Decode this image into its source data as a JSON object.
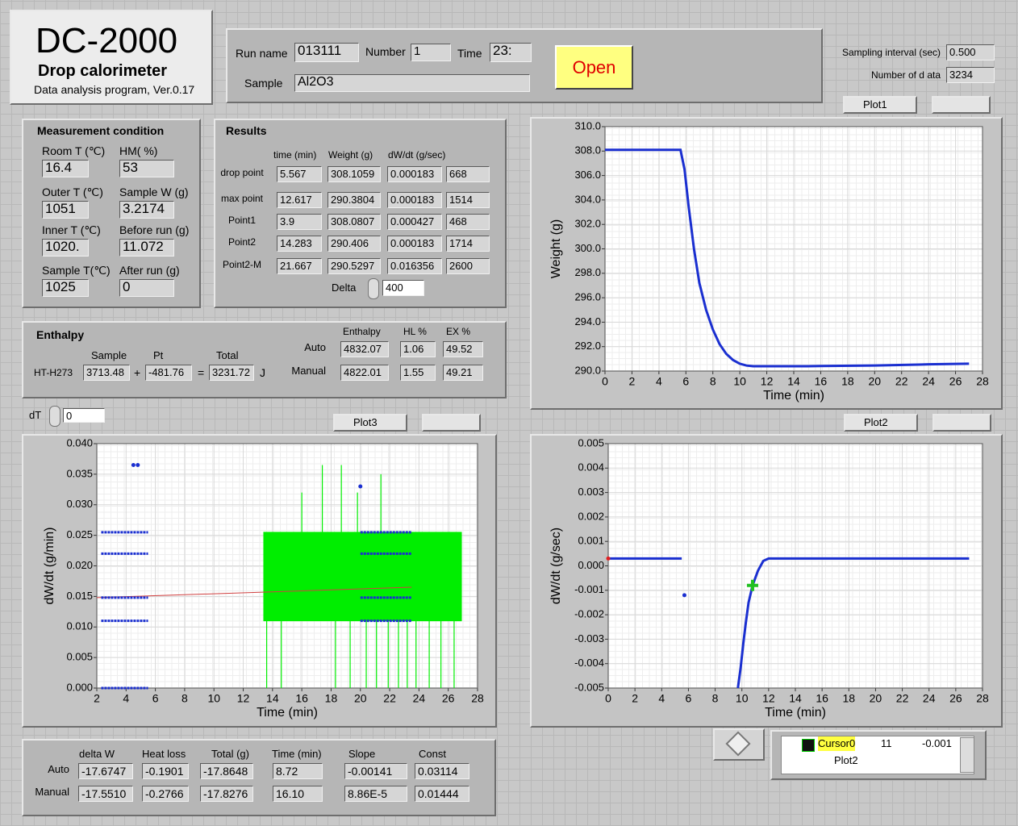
{
  "header": {
    "title": "DC-2000",
    "subtitle": "Drop calorimeter",
    "version": "Data analysis program, Ver.0.17"
  },
  "run": {
    "run_name_label": "Run name",
    "run_name": "013111",
    "number_label": "Number",
    "number": "1",
    "time_label": "Time",
    "time": "23:",
    "sample_label": "Sample",
    "sample": "Al2O3",
    "open_button": "Open"
  },
  "sampling": {
    "interval_label": "Sampling interval (sec)",
    "interval": "0.500",
    "count_label": "Number of d ata",
    "count": "3234"
  },
  "measurement": {
    "title": "Measurement condition",
    "fields": [
      {
        "label": "Room T (℃)",
        "value": "16.4"
      },
      {
        "label": "HM( %)",
        "value": "53"
      },
      {
        "label": "Outer T (℃)",
        "value": "1051"
      },
      {
        "label": "Sample W (g)",
        "value": "3.2174"
      },
      {
        "label": "Inner T (℃)",
        "value": "1020."
      },
      {
        "label": "Before run (g)",
        "value": "11.072"
      },
      {
        "label": "Sample T(℃)",
        "value": "1025"
      },
      {
        "label": "After run (g)",
        "value": "0"
      }
    ]
  },
  "results": {
    "title": "Results",
    "columns": [
      "time (min)",
      "Weight (g)",
      "dW/dt (g/sec)"
    ],
    "rows": [
      {
        "label": "drop point",
        "values": [
          "5.567",
          "308.1059",
          "0.000183",
          "668"
        ]
      },
      {
        "label": "max point",
        "values": [
          "12.617",
          "290.3804",
          "0.000183",
          "1514"
        ]
      },
      {
        "label": "Point1",
        "values": [
          "3.9",
          "308.0807",
          "0.000427",
          "468"
        ]
      },
      {
        "label": "Point2",
        "values": [
          "14.283",
          "290.406",
          "0.000183",
          "1714"
        ]
      },
      {
        "label": "Point2-M",
        "values": [
          "21.667",
          "290.5297",
          "0.016356",
          "2600"
        ]
      }
    ],
    "delta_label": "Delta",
    "delta": "400"
  },
  "enthalpy": {
    "title": "Enthalpy",
    "sample_label": "Sample",
    "pt_label": "Pt",
    "total_label": "Total",
    "row_label": "HT-H273",
    "sample": "3713.48",
    "plus": "+",
    "pt": "-481.76",
    "equals": "=",
    "total": "3231.72",
    "unit": "J",
    "columns": [
      "Enthalpy",
      "HL %",
      "EX %"
    ],
    "rows": [
      {
        "label": "Auto",
        "values": [
          "4832.07",
          "1.06",
          "49.52"
        ]
      },
      {
        "label": "Manual",
        "values": [
          "4822.01",
          "1.55",
          "49.21"
        ]
      }
    ]
  },
  "dT": {
    "label": "dT",
    "value": "0"
  },
  "fit": {
    "columns": [
      "delta W",
      "Heat loss",
      "Total (g)",
      "Time (min)",
      "Slope",
      "Const"
    ],
    "rows": [
      {
        "label": "Auto",
        "values": [
          "-17.6747",
          "-0.1901",
          "-17.8648",
          "8.72",
          "-0.00141",
          "0.03114"
        ]
      },
      {
        "label": "Manual",
        "values": [
          "-17.5510",
          "-0.2766",
          "-17.8276",
          "16.10",
          "8.86E-5",
          "0.01444"
        ]
      }
    ]
  },
  "cursor": {
    "name": "Cursor0",
    "x": "11",
    "y": "-0.001",
    "plot": "Plot2"
  },
  "chart_data": [
    {
      "type": "line",
      "plot_name": "Plot1",
      "xlabel": "Time (min)",
      "ylabel": "Weight (g)",
      "xlim": [
        0,
        28
      ],
      "ylim": [
        290,
        310
      ],
      "grid": true,
      "xticks": [
        0,
        2,
        4,
        6,
        8,
        10,
        12,
        14,
        16,
        18,
        20,
        22,
        24,
        26,
        28
      ],
      "yticks": [
        {
          "value": 290,
          "label": "290.0"
        },
        {
          "value": 292,
          "label": "292.0"
        },
        {
          "value": 294,
          "label": "294.0"
        },
        {
          "value": 296,
          "label": "296.0"
        },
        {
          "value": 298,
          "label": "298.0"
        },
        {
          "value": 300,
          "label": "300.0"
        },
        {
          "value": 302,
          "label": "302.0"
        },
        {
          "value": 304,
          "label": "304.0"
        },
        {
          "value": 306,
          "label": "306.0"
        },
        {
          "value": 308,
          "label": "308.0"
        },
        {
          "value": 310,
          "label": "310.0"
        }
      ],
      "series": [
        {
          "kind": "line",
          "color": "#1a2fd0",
          "x": [
            0,
            5.6,
            5.9,
            6.2,
            6.6,
            7,
            7.5,
            8,
            8.5,
            9,
            9.5,
            10,
            10.5,
            11,
            15,
            20,
            24,
            27
          ],
          "values": [
            308.1,
            308.1,
            306.5,
            303.5,
            300,
            297.2,
            295,
            293.4,
            292.2,
            291.4,
            290.9,
            290.6,
            290.45,
            290.4,
            290.4,
            290.45,
            290.55,
            290.6
          ]
        }
      ]
    },
    {
      "type": "scatter",
      "plot_name": "Plot3",
      "xlabel": "Time (min)",
      "ylabel": "dW/dt (g/min)",
      "xlim": [
        2,
        28
      ],
      "ylim": [
        0,
        0.04
      ],
      "grid": true,
      "xticks": [
        2,
        4,
        6,
        8,
        10,
        12,
        14,
        16,
        18,
        20,
        22,
        24,
        26,
        28
      ],
      "yticks": [
        {
          "value": 0,
          "label": "0.000"
        },
        {
          "value": 0.005,
          "label": "0.005"
        },
        {
          "value": 0.01,
          "label": "0.010"
        },
        {
          "value": 0.015,
          "label": "0.015"
        },
        {
          "value": 0.02,
          "label": "0.020"
        },
        {
          "value": 0.025,
          "label": "0.025"
        },
        {
          "value": 0.03,
          "label": "0.030"
        },
        {
          "value": 0.035,
          "label": "0.035"
        },
        {
          "value": 0.04,
          "label": "0.040"
        }
      ],
      "series": [
        {
          "kind": "band",
          "color": "#00ee00",
          "x": [
            13.4,
            26.9
          ],
          "low": [
            0.011,
            0.011
          ],
          "high": [
            0.0255,
            0.0255
          ]
        },
        {
          "kind": "spikes",
          "color": "#00ee00",
          "x": [
            16.0,
            17.4,
            18.7,
            19.8,
            21.4,
            13.6,
            14.6,
            18.3,
            19.3,
            20.4,
            21.1,
            21.9,
            22.6,
            23.2,
            23.8,
            24.7,
            25.5,
            26.4
          ],
          "low": [
            0.0255,
            0.0255,
            0.0255,
            0.0255,
            0.0255,
            0,
            0,
            0,
            0,
            0,
            0,
            0,
            0,
            0,
            0,
            0,
            0,
            0
          ],
          "high": [
            0.032,
            0.0365,
            0.0365,
            0.032,
            0.035,
            0.011,
            0.011,
            0.011,
            0.011,
            0.011,
            0.011,
            0.011,
            0.011,
            0.011,
            0.011,
            0.011,
            0.011,
            0.011
          ]
        },
        {
          "kind": "line",
          "color": "#d04040",
          "x": [
            2,
            23.5
          ],
          "values": [
            0.0148,
            0.0165
          ]
        },
        {
          "kind": "rows",
          "color": "#1a2fd0",
          "rows": [
            {
              "x": [
                2.3,
                5.5
              ],
              "y": 0.0255
            },
            {
              "x": [
                2.3,
                5.5
              ],
              "y": 0.022
            },
            {
              "x": [
                2.3,
                5.5
              ],
              "y": 0.0148
            },
            {
              "x": [
                2.3,
                5.5
              ],
              "y": 0.011
            },
            {
              "x": [
                2.3,
                5.5
              ],
              "y": 0
            },
            {
              "x": [
                20,
                23.5
              ],
              "y": 0.0255
            },
            {
              "x": [
                20,
                23.5
              ],
              "y": 0.022
            },
            {
              "x": [
                20,
                23.5
              ],
              "y": 0.0148
            },
            {
              "x": [
                20,
                23.5
              ],
              "y": 0.011
            }
          ]
        },
        {
          "kind": "points",
          "color": "#1a2fd0",
          "x": [
            4.5,
            4.8,
            20
          ],
          "values": [
            0.0365,
            0.0365,
            0.033
          ]
        }
      ]
    },
    {
      "type": "line",
      "plot_name": "Plot2",
      "xlabel": "Time (min)",
      "ylabel": "dW/dt (g/sec)",
      "xlim": [
        0,
        28
      ],
      "ylim": [
        -0.005,
        0.005
      ],
      "grid": true,
      "xticks": [
        0,
        2,
        4,
        6,
        8,
        10,
        12,
        14,
        16,
        18,
        20,
        22,
        24,
        26,
        28
      ],
      "yticks": [
        {
          "value": -0.005,
          "label": "-0.005"
        },
        {
          "value": -0.004,
          "label": "-0.004"
        },
        {
          "value": -0.003,
          "label": "-0.003"
        },
        {
          "value": -0.002,
          "label": "-0.002"
        },
        {
          "value": -0.001,
          "label": "-0.001"
        },
        {
          "value": 0,
          "label": "0.000"
        },
        {
          "value": 0.001,
          "label": "0.001"
        },
        {
          "value": 0.002,
          "label": "0.002"
        },
        {
          "value": 0.003,
          "label": "0.003"
        },
        {
          "value": 0.004,
          "label": "0.004"
        },
        {
          "value": 0.005,
          "label": "0.005"
        }
      ],
      "series": [
        {
          "kind": "line",
          "color": "#1a2fd0",
          "x": [
            0,
            5.5,
            7,
            9.7,
            9.9,
            10.1,
            10.3,
            10.5,
            10.8,
            11.2,
            11.6,
            12,
            27
          ],
          "values": [
            0.0003,
            0.0003,
            null,
            -0.005,
            -0.0042,
            -0.0032,
            -0.0023,
            -0.0015,
            -0.0008,
            -0.0002,
            0.0002,
            0.0003,
            0.0003
          ]
        },
        {
          "kind": "points",
          "color": "#1a2fd0",
          "x": [
            5.7
          ],
          "values": [
            -0.0012
          ]
        },
        {
          "kind": "points",
          "color": "#e02020",
          "x": [
            0
          ],
          "values": [
            0.0003
          ]
        }
      ],
      "cursor": {
        "x": 10.8,
        "y": -0.0008,
        "color": "#20c020"
      }
    }
  ]
}
